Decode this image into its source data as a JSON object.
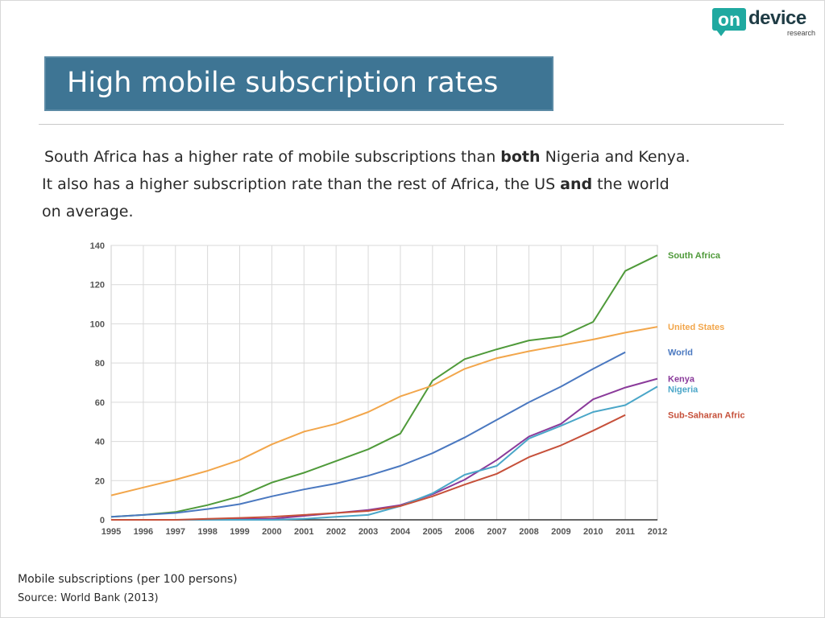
{
  "logo": {
    "mark": "on",
    "word": "device",
    "sub": "research"
  },
  "title": "High mobile subscription rates",
  "body": {
    "line1": {
      "pre": "South Africa has a higher rate of mobile subscriptions than ",
      "bold": "both",
      "post": " Nigeria and Kenya."
    },
    "line2": {
      "pre": "It also has a higher subscription rate than the rest of Africa, the US ",
      "bold": "and",
      "post": " the world"
    },
    "line3": "on average."
  },
  "footer": {
    "caption": "Mobile subscriptions (per 100 persons)",
    "source": "Source: World Bank (2013)"
  },
  "chart_data": {
    "type": "line",
    "title": "",
    "xlabel": "",
    "ylabel": "",
    "x": [
      "1995",
      "1996",
      "1997",
      "1998",
      "1999",
      "2000",
      "2001",
      "2002",
      "2003",
      "2004",
      "2005",
      "2006",
      "2007",
      "2008",
      "2009",
      "2010",
      "2011",
      "2012"
    ],
    "ylim": [
      0,
      140
    ],
    "yticks": [
      0,
      20,
      40,
      60,
      80,
      100,
      120,
      140
    ],
    "grid": true,
    "legend": "right (labels at line ends)",
    "series": [
      {
        "name": "South Africa",
        "color": "#4f9a3a",
        "values": [
          1.5,
          2.5,
          4,
          7.5,
          12,
          19,
          24,
          30,
          36,
          44,
          71,
          82,
          87,
          91.5,
          93.5,
          101,
          127,
          135
        ]
      },
      {
        "name": "United States",
        "color": "#f2a64b",
        "values": [
          12.5,
          16.5,
          20.5,
          25,
          30.5,
          38.5,
          45,
          49,
          55,
          63,
          68.5,
          77,
          82.5,
          86,
          89,
          92,
          95.5,
          98.5
        ]
      },
      {
        "name": "World",
        "color": "#4a78c0",
        "values": [
          1.5,
          2.5,
          3.5,
          5.5,
          8,
          12,
          15.5,
          18.5,
          22.5,
          27.5,
          34,
          42,
          51,
          60,
          68,
          77,
          85.5,
          null
        ]
      },
      {
        "name": "Kenya",
        "color": "#8a3a9a",
        "values": [
          0,
          0,
          0,
          0,
          0.5,
          0.5,
          2,
          3.5,
          5,
          7.5,
          13,
          20.5,
          30.5,
          42.5,
          49,
          61.5,
          67.5,
          72
        ]
      },
      {
        "name": "Nigeria",
        "color": "#4aa6c8",
        "values": [
          0,
          0,
          0,
          0,
          0,
          0,
          0.5,
          1.5,
          2.5,
          7,
          13.5,
          23,
          27.5,
          41.5,
          48,
          55,
          58.5,
          68
        ]
      },
      {
        "name": "Sub-Saharan Africa",
        "color": "#c6503a",
        "values": [
          0,
          0,
          0,
          0.5,
          1,
          1.5,
          2.5,
          3.5,
          4.5,
          7,
          12,
          18,
          23.5,
          32,
          38,
          45.5,
          53.5,
          null
        ]
      }
    ]
  }
}
